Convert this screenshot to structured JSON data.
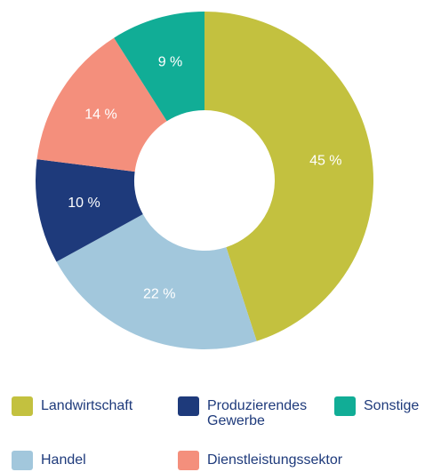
{
  "chart_data": {
    "type": "donut",
    "categories": [
      "Landwirtschaft",
      "Handel",
      "Produzierendes Gewerbe",
      "Dienstleistungssektor",
      "Sonstige"
    ],
    "values": [
      45,
      22,
      10,
      14,
      9
    ],
    "value_labels": [
      "45 %",
      "22 %",
      "10 %",
      "14 %",
      "9 %"
    ],
    "colors": [
      "#c3c13f",
      "#a2c7dc",
      "#1e3a7b",
      "#f48f7c",
      "#11ad96"
    ]
  }
}
